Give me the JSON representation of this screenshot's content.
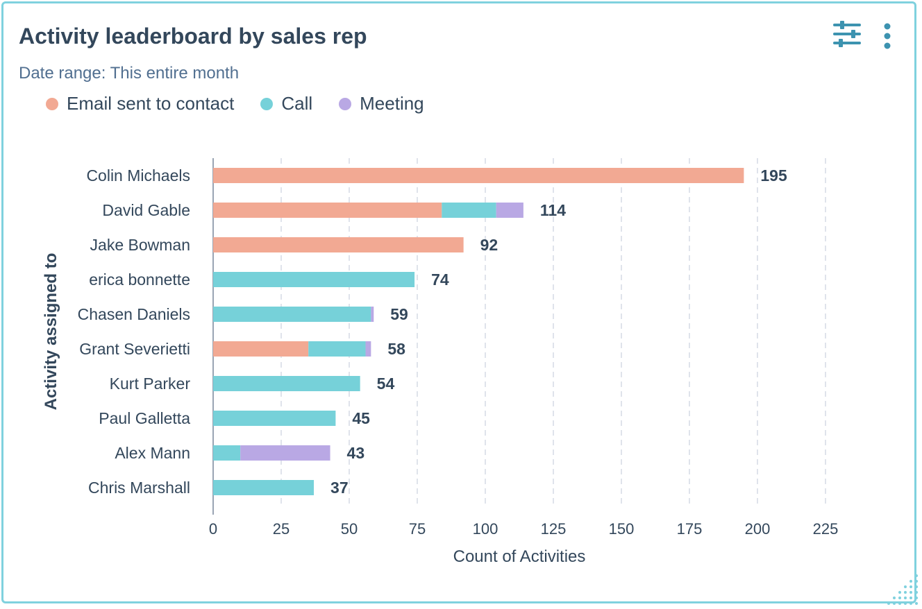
{
  "card": {
    "title": "Activity leaderboard by sales rep",
    "subtitle": "Date range: This entire month",
    "filter_icon": "sliders-icon",
    "menu_icon": "vertical-dots-icon"
  },
  "colors": {
    "email": "#f2a993",
    "call": "#76d1d9",
    "meeting": "#b9a8e4",
    "accent": "#3d93b0",
    "border": "#7fd1de"
  },
  "chart_data": {
    "type": "bar",
    "orientation": "horizontal",
    "stacked": true,
    "title": "Activity leaderboard by sales rep",
    "xlabel": "Count of Activities",
    "ylabel": "Activity assigned to",
    "xlim": [
      0,
      225
    ],
    "xticks": [
      0,
      25,
      50,
      75,
      100,
      125,
      150,
      175,
      200,
      225
    ],
    "grid": true,
    "legend_position": "top-left",
    "categories": [
      "Colin Michaels",
      "David Gable",
      "Jake Bowman",
      "erica bonnette",
      "Chasen Daniels",
      "Grant Severietti",
      "Kurt Parker",
      "Paul Galletta",
      "Alex Mann",
      "Chris Marshall"
    ],
    "series": [
      {
        "name": "Email sent to contact",
        "color_key": "email",
        "values": [
          195,
          84,
          92,
          0,
          0,
          35,
          0,
          0,
          0,
          0
        ]
      },
      {
        "name": "Call",
        "color_key": "call",
        "values": [
          0,
          20,
          0,
          74,
          58,
          21,
          54,
          45,
          10,
          37
        ]
      },
      {
        "name": "Meeting",
        "color_key": "meeting",
        "values": [
          0,
          10,
          0,
          0,
          1,
          2,
          0,
          0,
          33,
          0
        ]
      }
    ],
    "totals": [
      195,
      114,
      92,
      74,
      59,
      58,
      54,
      45,
      43,
      37
    ]
  }
}
